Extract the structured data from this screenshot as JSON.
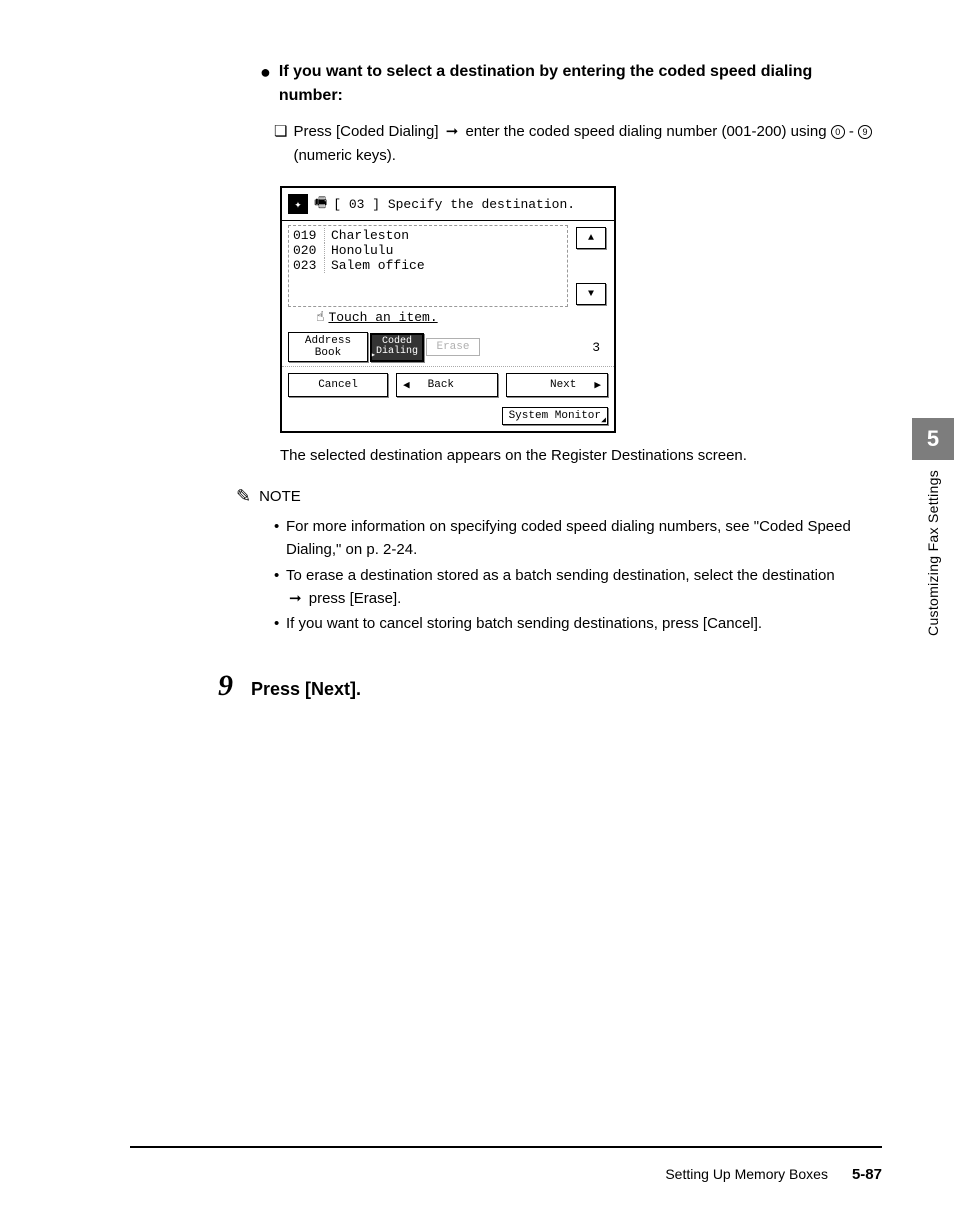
{
  "heading": "If you want to select a destination by entering the coded speed dialing number:",
  "checkbox_line_a": "Press [Coded Dialing]",
  "checkbox_line_b": "enter the coded speed dialing number (001-200) using",
  "checkbox_line_c": " (numeric keys).",
  "num_start": "0",
  "num_end": "9",
  "lcd": {
    "header": "[ 03 ] Specify the destination.",
    "rows": [
      {
        "num": "019",
        "name": "Charleston"
      },
      {
        "num": "020",
        "name": "Honolulu"
      },
      {
        "num": "023",
        "name": "Salem office"
      }
    ],
    "hint": "Touch an item.",
    "addr_label": "Address Book",
    "coded_label_a": "Coded",
    "coded_label_b": "Dialing",
    "erase_label": "Erase",
    "count": "3",
    "cancel": "Cancel",
    "back": "Back",
    "next": "Next",
    "sysmon": "System Monitor"
  },
  "result": "The selected destination appears on the Register Destinations screen.",
  "note_label": "NOTE",
  "notes": {
    "n1": "For more information on specifying coded speed dialing numbers, see \"Coded Speed Dialing,\" on p. 2-24.",
    "n2a": "To erase a destination stored as a batch sending destination, select the destination",
    "n2b": "press [Erase].",
    "n3": "If you want to cancel storing batch sending destinations, press [Cancel]."
  },
  "step_num": "9",
  "step_text": "Press [Next].",
  "side": {
    "num": "5",
    "label": "Customizing Fax Settings"
  },
  "footer": {
    "section": "Setting Up Memory Boxes",
    "page": "5-87"
  }
}
